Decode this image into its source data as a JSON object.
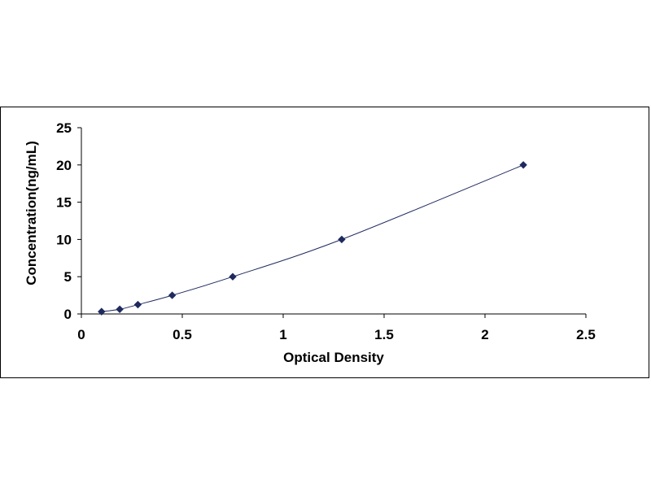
{
  "chart_data": {
    "type": "scatter",
    "title": "",
    "xlabel": "Optical Density",
    "ylabel": "Concentration(ng/mL)",
    "xlim": [
      0,
      2.5
    ],
    "ylim": [
      0,
      25
    ],
    "x_ticks": [
      "0",
      "0.5",
      "1",
      "1.5",
      "2",
      "2.5"
    ],
    "y_ticks": [
      "0",
      "5",
      "10",
      "15",
      "20",
      "25"
    ],
    "grid": false,
    "legend": "none",
    "series": [
      {
        "marker": "diamond",
        "color": "#1f2a5e",
        "trendline": "smooth curve",
        "points": [
          {
            "x": 0.1,
            "y": 0.313
          },
          {
            "x": 0.19,
            "y": 0.625
          },
          {
            "x": 0.28,
            "y": 1.25
          },
          {
            "x": 0.45,
            "y": 2.5
          },
          {
            "x": 0.75,
            "y": 5
          },
          {
            "x": 1.29,
            "y": 10
          },
          {
            "x": 2.19,
            "y": 20
          }
        ]
      }
    ]
  }
}
